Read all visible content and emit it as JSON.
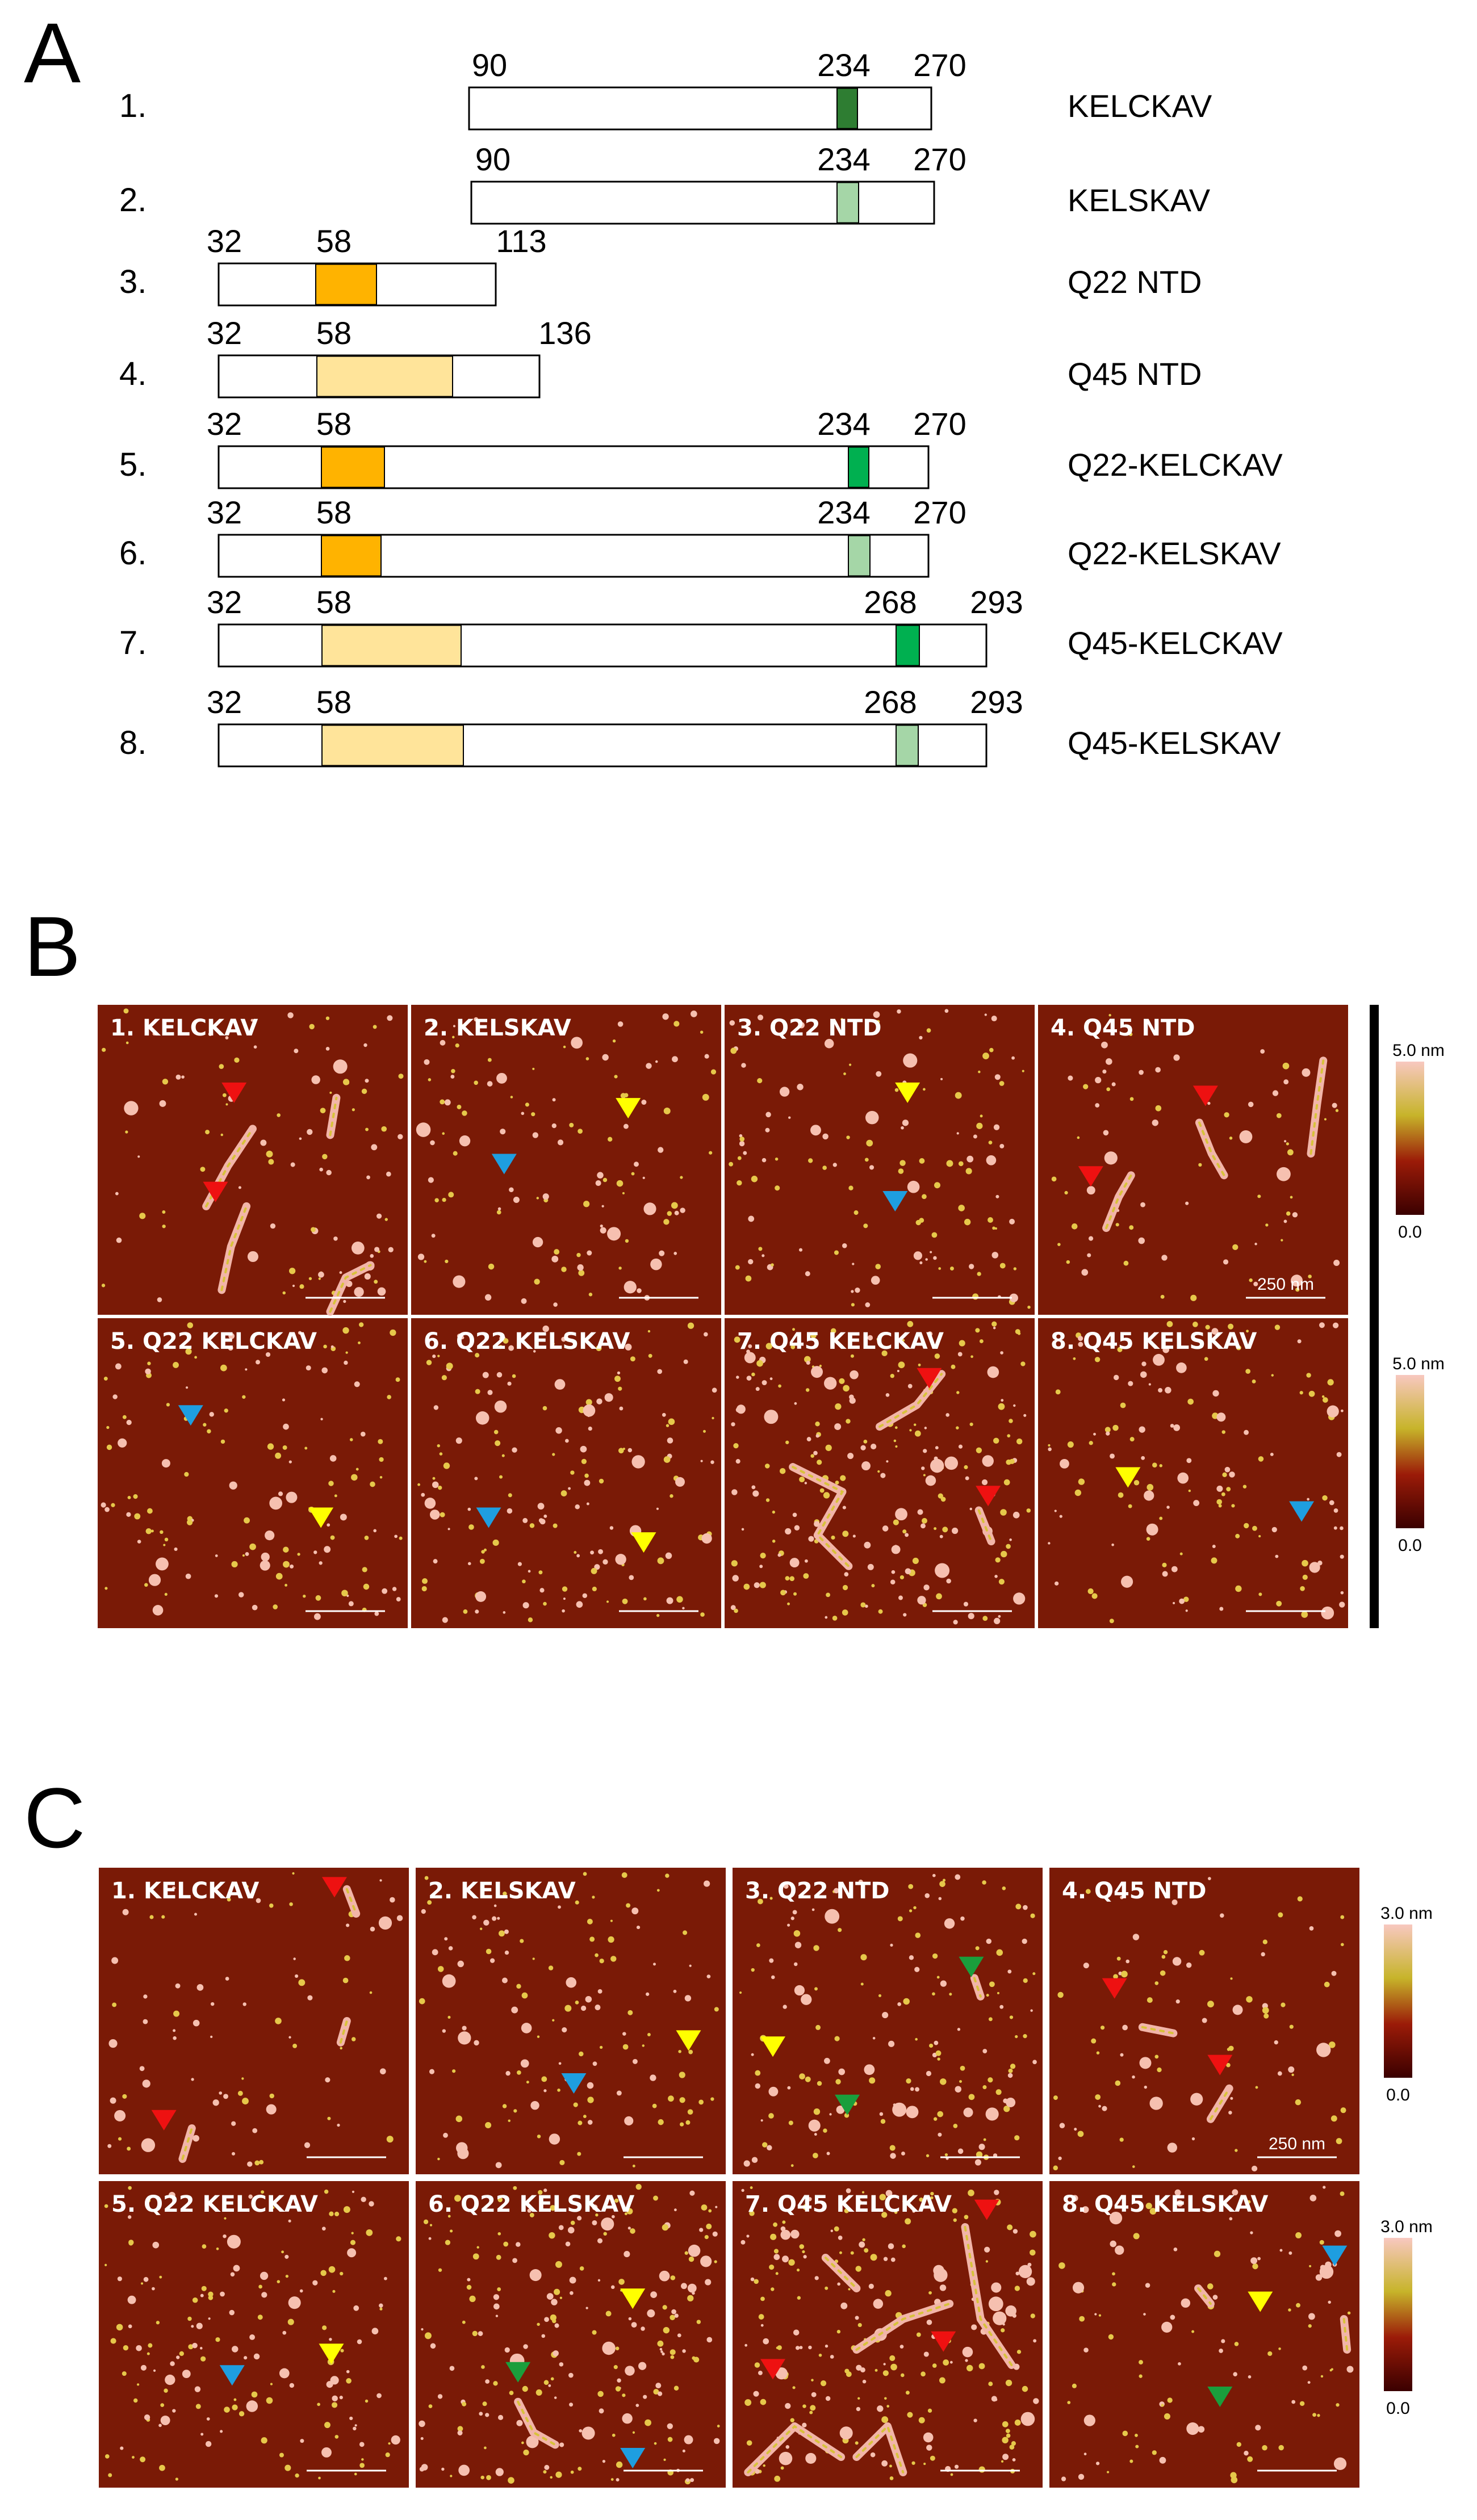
{
  "panel_letters": {
    "a": "A",
    "b": "B",
    "c": "C"
  },
  "constructs": [
    {
      "index": "1.",
      "name": "KELCKAV",
      "labels": [
        "90",
        "234",
        "270"
      ],
      "residues": {
        "start": 90,
        "end": 270
      },
      "domains": [
        {
          "from": 234,
          "to": 236,
          "color": "#2e7d32"
        }
      ]
    },
    {
      "index": "2.",
      "name": "KELSKAV",
      "labels": [
        "90",
        "234",
        "270"
      ],
      "residues": {
        "start": 90,
        "end": 270
      },
      "domains": [
        {
          "from": 234,
          "to": 236,
          "color": "#a5d6a7"
        }
      ]
    },
    {
      "index": "3.",
      "name": "Q22 NTD",
      "labels": [
        "32",
        "58",
        "113"
      ],
      "residues": {
        "start": 32,
        "end": 113
      },
      "domains": [
        {
          "from": 58,
          "to": 75,
          "color": "#ffb300"
        }
      ]
    },
    {
      "index": "4.",
      "name": "Q45 NTD",
      "labels": [
        "32",
        "58",
        "136"
      ],
      "residues": {
        "start": 32,
        "end": 136
      },
      "domains": [
        {
          "from": 58,
          "to": 103,
          "color": "#ffe49a"
        }
      ]
    },
    {
      "index": "5.",
      "name": "Q22-KELCKAV",
      "labels": [
        "32",
        "58",
        "234",
        "270"
      ],
      "residues": {
        "start": 32,
        "end": 270
      },
      "domains": [
        {
          "from": 58,
          "to": 80,
          "color": "#ffb300"
        },
        {
          "from": 234,
          "to": 238,
          "color": "#00b050"
        }
      ]
    },
    {
      "index": "6.",
      "name": "Q22-KELSKAV",
      "labels": [
        "32",
        "58",
        "234",
        "270"
      ],
      "residues": {
        "start": 32,
        "end": 270
      },
      "domains": [
        {
          "from": 58,
          "to": 80,
          "color": "#ffb300"
        },
        {
          "from": 234,
          "to": 238,
          "color": "#a5d6a7"
        }
      ]
    },
    {
      "index": "7.",
      "name": "Q45-KELCKAV",
      "labels": [
        "32",
        "58",
        "268",
        "293"
      ],
      "residues": {
        "start": 32,
        "end": 293
      },
      "domains": [
        {
          "from": 58,
          "to": 103,
          "color": "#ffe49a"
        },
        {
          "from": 268,
          "to": 272,
          "color": "#00b050"
        }
      ]
    },
    {
      "index": "8.",
      "name": "Q45-KELSKAV",
      "labels": [
        "32",
        "58",
        "268",
        "293"
      ],
      "residues": {
        "start": 32,
        "end": 293
      },
      "domains": [
        {
          "from": 58,
          "to": 103,
          "color": "#ffe49a"
        },
        {
          "from": 268,
          "to": 272,
          "color": "#a5d6a7"
        }
      ]
    }
  ],
  "afm_tiles": [
    "1. KELCKAV",
    "2. KELSKAV",
    "3. Q22 NTD",
    "4. Q45 NTD",
    "5. Q22 KELCKAV",
    "6. Q22 KELSKAV",
    "7. Q45 KELCKAV",
    "8. Q45 KELSKAV"
  ],
  "panel_b": {
    "scale_bar": "250  nm",
    "colorbar_max": "5.0 nm",
    "colorbar_min": "0.0",
    "arrows": [
      {
        "tile": 0,
        "colors": [
          "red",
          "red"
        ]
      },
      {
        "tile": 1,
        "colors": [
          "blue",
          "yellow"
        ]
      },
      {
        "tile": 2,
        "colors": [
          "yellow",
          "blue"
        ]
      },
      {
        "tile": 3,
        "colors": [
          "red",
          "red"
        ]
      },
      {
        "tile": 4,
        "colors": [
          "blue",
          "yellow"
        ]
      },
      {
        "tile": 5,
        "colors": [
          "blue",
          "yellow"
        ]
      },
      {
        "tile": 6,
        "colors": [
          "red",
          "red"
        ]
      },
      {
        "tile": 7,
        "colors": [
          "yellow",
          "blue"
        ]
      }
    ]
  },
  "panel_c": {
    "scale_bar": "250  nm",
    "colorbar_max": "3.0 nm",
    "colorbar_min": "0.0",
    "arrows": [
      {
        "tile": 0,
        "colors": [
          "red",
          "red"
        ]
      },
      {
        "tile": 1,
        "colors": [
          "yellow",
          "blue"
        ]
      },
      {
        "tile": 2,
        "colors": [
          "green",
          "yellow",
          "green"
        ]
      },
      {
        "tile": 3,
        "colors": [
          "red",
          "red"
        ]
      },
      {
        "tile": 4,
        "colors": [
          "blue",
          "yellow"
        ]
      },
      {
        "tile": 5,
        "colors": [
          "yellow",
          "green",
          "blue"
        ]
      },
      {
        "tile": 6,
        "colors": [
          "red",
          "red",
          "red"
        ]
      },
      {
        "tile": 7,
        "colors": [
          "blue",
          "yellow",
          "green"
        ]
      }
    ]
  },
  "colors": {
    "afm_background": "#7a1a06",
    "particle": "#f6c0b0",
    "arrow_red": "#ee1111",
    "arrow_blue": "#1e9ee0",
    "arrow_yellow": "#ffff00",
    "arrow_green": "#1a9e3c"
  }
}
